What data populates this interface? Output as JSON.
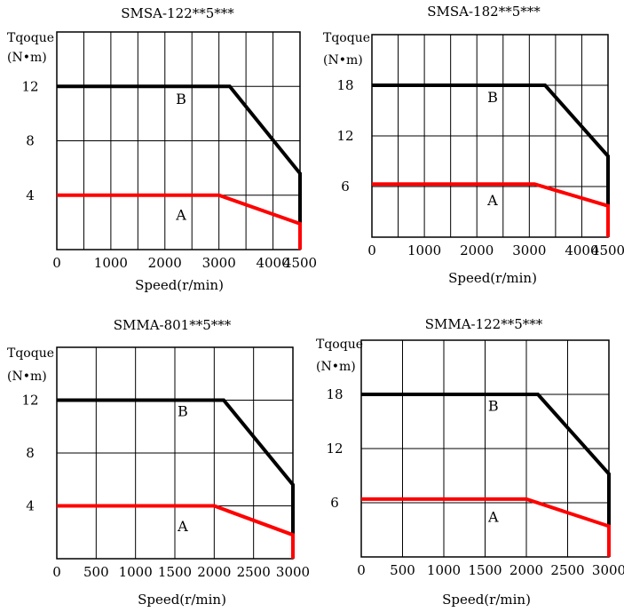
{
  "chart_data": [
    {
      "type": "line",
      "title": "SMSA-122**5***",
      "ylabel_line1": "Tqoque",
      "ylabel_line2": "(N•m)",
      "xlabel": "Speed(r/min)",
      "xlim": [
        0,
        4500
      ],
      "ylim": [
        0,
        16
      ],
      "x_tick_values": [
        0,
        1000,
        2000,
        3000,
        4000,
        4500
      ],
      "x_tick_labels": [
        "0",
        "1000",
        "2000",
        "3000",
        "4000",
        "4500"
      ],
      "y_tick_values": [
        4,
        8,
        12
      ],
      "y_tick_labels": [
        "4",
        "8",
        "12"
      ],
      "grid": true,
      "series": [
        {
          "color": "#000000",
          "points": [
            [
              0,
              12
            ],
            [
              3200,
              12
            ],
            [
              4500,
              5.6
            ],
            [
              4500,
              1.9
            ]
          ]
        },
        {
          "color": "#ff0000",
          "points": [
            [
              0,
              4
            ],
            [
              3000,
              4
            ],
            [
              4500,
              1.9
            ],
            [
              4500,
              0
            ]
          ]
        }
      ],
      "annotations": [
        {
          "text": "B",
          "x": 2300,
          "y": 10.7
        },
        {
          "text": "A",
          "x": 2300,
          "y": 2.2
        }
      ]
    },
    {
      "type": "line",
      "title": "SMSA-182**5***",
      "ylabel_line1": "Tqoque",
      "ylabel_line2": "(N•m)",
      "xlabel": "Speed(r/min)",
      "xlim": [
        0,
        4500
      ],
      "ylim": [
        0,
        24
      ],
      "x_tick_values": [
        0,
        1000,
        2000,
        3000,
        4000,
        4500
      ],
      "x_tick_labels": [
        "0",
        "1000",
        "2000",
        "3000",
        "4000",
        "4500"
      ],
      "y_tick_values": [
        6,
        12,
        18
      ],
      "y_tick_labels": [
        "6",
        "12",
        "18"
      ],
      "grid": true,
      "series": [
        {
          "color": "#000000",
          "points": [
            [
              0,
              18
            ],
            [
              3300,
              18
            ],
            [
              4500,
              9.6
            ],
            [
              4500,
              3.7
            ]
          ]
        },
        {
          "color": "#ff0000",
          "points": [
            [
              0,
              6.3
            ],
            [
              3100,
              6.3
            ],
            [
              4500,
              3.7
            ],
            [
              4500,
              0
            ]
          ]
        }
      ],
      "annotations": [
        {
          "text": "B",
          "x": 2300,
          "y": 16
        },
        {
          "text": "A",
          "x": 2300,
          "y": 3.8
        }
      ]
    },
    {
      "type": "line",
      "title": "SMMA-801**5***",
      "ylabel_line1": "Tqoque",
      "ylabel_line2": "(N•m)",
      "xlabel": "Speed(r/min)",
      "xlim": [
        0,
        3000
      ],
      "ylim": [
        0,
        16
      ],
      "x_tick_values": [
        0,
        500,
        1000,
        1500,
        2000,
        2500,
        3000
      ],
      "x_tick_labels": [
        "0",
        "500",
        "1000",
        "1500",
        "2000",
        "2500",
        "3000"
      ],
      "y_tick_values": [
        4,
        8,
        12
      ],
      "y_tick_labels": [
        "4",
        "8",
        "12"
      ],
      "grid": true,
      "series": [
        {
          "color": "#000000",
          "points": [
            [
              0,
              12
            ],
            [
              2120,
              12
            ],
            [
              3000,
              5.6
            ],
            [
              3000,
              1.8
            ]
          ]
        },
        {
          "color": "#ff0000",
          "points": [
            [
              0,
              4
            ],
            [
              2000,
              4
            ],
            [
              3000,
              1.8
            ],
            [
              3000,
              0
            ]
          ]
        }
      ],
      "annotations": [
        {
          "text": "B",
          "x": 1600,
          "y": 10.8
        },
        {
          "text": "A",
          "x": 1600,
          "y": 2.1
        }
      ]
    },
    {
      "type": "line",
      "title": "SMMA-122**5***",
      "ylabel_line1": "Tqoque",
      "ylabel_line2": "(N•m)",
      "xlabel": "Speed(r/min)",
      "xlim": [
        0,
        3000
      ],
      "ylim": [
        0,
        24
      ],
      "x_tick_values": [
        0,
        500,
        1000,
        1500,
        2000,
        2500,
        3000
      ],
      "x_tick_labels": [
        "0",
        "500",
        "1000",
        "1500",
        "2000",
        "2500",
        "3000"
      ],
      "y_tick_values": [
        6,
        12,
        18
      ],
      "y_tick_labels": [
        "6",
        "12",
        "18"
      ],
      "grid": true,
      "series": [
        {
          "color": "#000000",
          "points": [
            [
              0,
              18
            ],
            [
              2140,
              18
            ],
            [
              3000,
              9.2
            ],
            [
              3000,
              3.4
            ]
          ]
        },
        {
          "color": "#ff0000",
          "points": [
            [
              0,
              6.4
            ],
            [
              2000,
              6.4
            ],
            [
              3000,
              3.4
            ],
            [
              3000,
              0
            ]
          ]
        }
      ],
      "annotations": [
        {
          "text": "B",
          "x": 1600,
          "y": 16.2
        },
        {
          "text": "A",
          "x": 1600,
          "y": 3.9
        }
      ]
    }
  ]
}
